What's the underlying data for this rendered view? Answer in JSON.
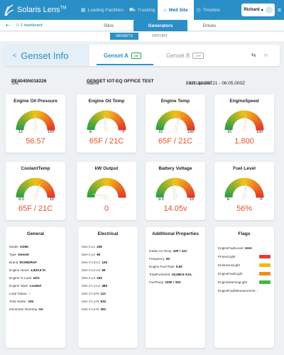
{
  "app": {
    "name": "Solaris Lens",
    "tm": "TM"
  },
  "top_tabs": [
    {
      "icon": "▦",
      "label": "Loading Facilities"
    },
    {
      "icon": "⛟",
      "label": "Trucking"
    },
    {
      "icon": "⌂",
      "label": "Well Site"
    },
    {
      "icon": "◷",
      "label": "Timeline"
    }
  ],
  "user": {
    "name": "Richard",
    "caret": "▾"
  },
  "breadcrumb": {
    "label": "1 dashboard"
  },
  "sub_tabs": [
    "Silos",
    "Generators",
    "Drives"
  ],
  "gen_tabs": [
    "GENSETS",
    "HISTORY"
  ],
  "genset": {
    "title": "Genset Info",
    "tab_a": "Genset A",
    "tab_a_status": "ON",
    "tab_b": "Genset B",
    "tab_b_status": "OFF"
  },
  "sn_row": {
    "sn_label": "SN:",
    "sn_value": "PE4045N018226",
    "name_label": "Name",
    "name_value": "GENSET IOT-EQ OFFICE TEST",
    "update_label": "Last Update:",
    "update_value": "2021-10-28T21 - 06:05.000Z"
  },
  "gauges": [
    {
      "title": "Engine Oil Pressure",
      "min": "12",
      "max": "100",
      "value": "56.57",
      "level": 0.5
    },
    {
      "title": "Engine Oil Temp",
      "min": "E",
      "max": "F",
      "value": "65F / 21C",
      "level": 0.45
    },
    {
      "title": "Engine Temp",
      "min": "15",
      "max": "150",
      "value": "65F / 21C",
      "level": 0.6
    },
    {
      "title": "EngineSpeed",
      "min": "15",
      "max": "150",
      "value": "1,800",
      "level": 0.55
    },
    {
      "title": "CoolantTemp",
      "min": "9.0",
      "max": "15",
      "value": "65F / 21C",
      "level": 0.6
    },
    {
      "title": "kW Output",
      "min": "",
      "max": "",
      "value": "0",
      "level": 0.08
    },
    {
      "title": "Battery Voltage",
      "min": "9.0",
      "max": "15",
      "value": "14.05v",
      "level": 0.45
    },
    {
      "title": "Fuel Level",
      "min": "E",
      "max": "F",
      "value": "56%",
      "level": 0.55
    }
  ],
  "general": {
    "title": "General",
    "items": [
      {
        "label": "Model",
        "value": "AG90"
      },
      {
        "label": "Type",
        "value": "Genset"
      },
      {
        "label": "Brand",
        "value": "RC90DRAF"
      },
      {
        "label": "Engine Hours",
        "value": "2,833.6 hr"
      },
      {
        "label": "Engine % Load",
        "value": "15%"
      },
      {
        "label": "Engine State",
        "value": "Loaded"
      },
      {
        "label": "Load Status:",
        "value": "-"
      },
      {
        "label": "Total Starts:",
        "value": "193"
      },
      {
        "label": "Generator Running",
        "value": "On"
      }
    ]
  },
  "electrical": {
    "title": "Electrical",
    "items": [
      {
        "label": "Gen A L1",
        "value": "235"
      },
      {
        "label": "Gen A L2",
        "value": "60"
      },
      {
        "label": "Gen V L3-L1",
        "value": "125"
      },
      {
        "label": "Gen V L2-L3",
        "value": "65"
      },
      {
        "label": "Gen A L3",
        "value": "193"
      },
      {
        "label": "Gen V L1-L2",
        "value": "480"
      },
      {
        "label": "Gen V L3-N",
        "value": "112"
      },
      {
        "label": "Gen V L1-N",
        "value": "532"
      },
      {
        "label": "Gen V L2-N",
        "value": "351"
      }
    ]
  },
  "additional": {
    "title": "Additional Properties",
    "items": [
      {
        "label": "Intake Air Temp",
        "value": "32F / 11C"
      },
      {
        "label": "Frequency",
        "value": "60"
      },
      {
        "label": "Engine Fuel Rate",
        "value": "0.83"
      },
      {
        "label": "TotalFuelUsed",
        "value": "18,469.5 GAL"
      },
      {
        "label": "FuelTemp",
        "value": "100F / 33C"
      }
    ]
  },
  "flags": {
    "title": "Flags",
    "items": [
      {
        "label": "EngineFaultLevel",
        "value": "HHH",
        "color": ""
      },
      {
        "label": "ProtectLight",
        "value": "",
        "color": "#e53935"
      },
      {
        "label": "EmissionsLight",
        "value": "",
        "color": "#f5b800"
      },
      {
        "label": "EngineFaultLight",
        "value": "",
        "color": "#f58a1f"
      },
      {
        "label": "EngineWarningLight",
        "value": "",
        "color": "#43b649"
      },
      {
        "label": "EngineFaultMeasurement",
        "value": "-",
        "color": ""
      }
    ]
  },
  "colors": {
    "primary": "#2a8fc7",
    "value_orange": "#e7512a",
    "gauge_green": "#2ea043",
    "gauge_yellow": "#f2c21b",
    "gauge_red": "#e23b2a"
  }
}
